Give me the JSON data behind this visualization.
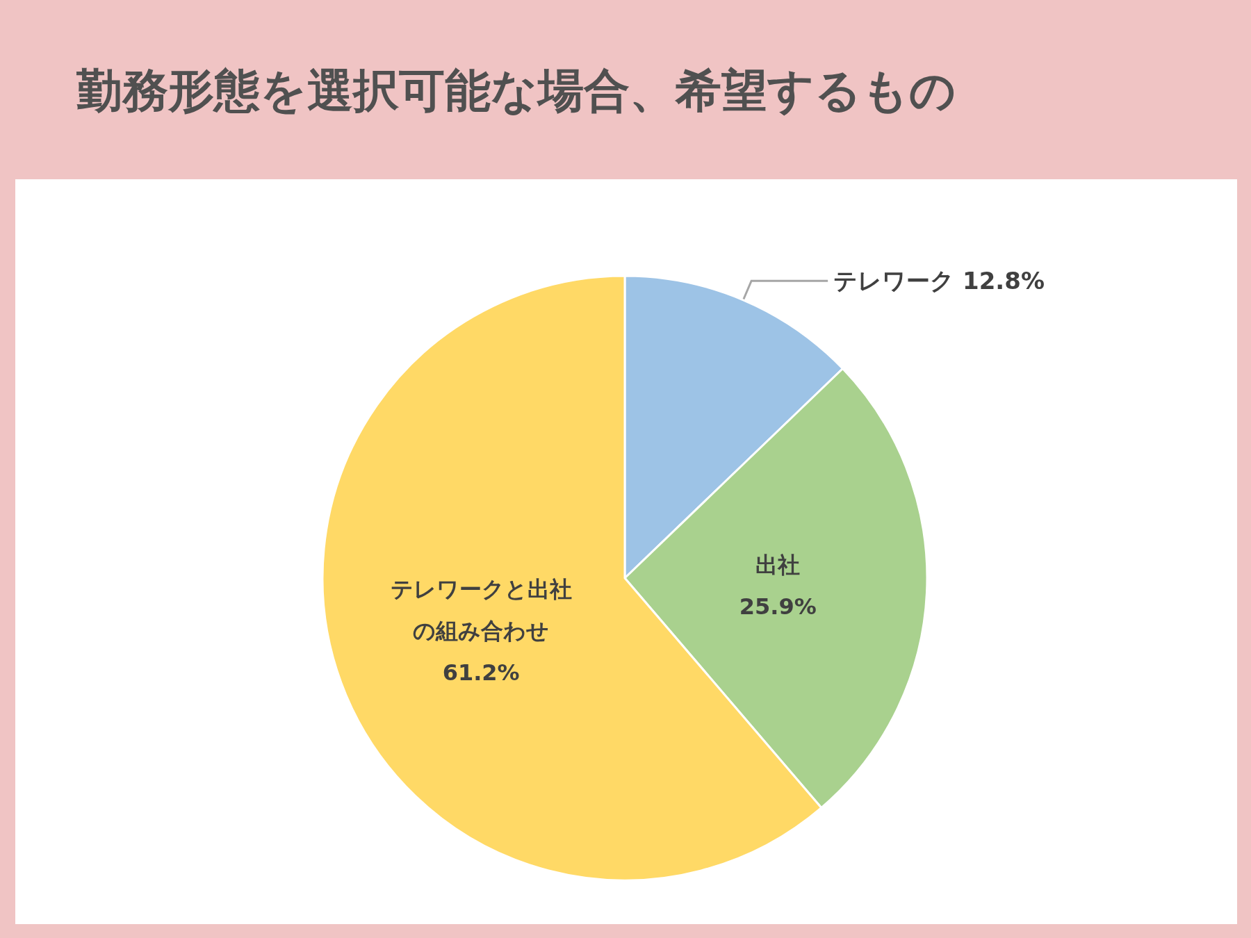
{
  "chart_data": {
    "type": "pie",
    "title": "勤務形態を選択可能な場合、希望するもの",
    "categories": [
      "テレワーク",
      "出社",
      "テレワークと出社の組み合わせ"
    ],
    "values": [
      12.8,
      25.9,
      61.2
    ],
    "colors": [
      "#9dc3e6",
      "#a9d18e",
      "#ffd966"
    ],
    "value_labels": [
      "12.8%",
      "25.9%",
      "61.2%"
    ],
    "legend": false
  }
}
